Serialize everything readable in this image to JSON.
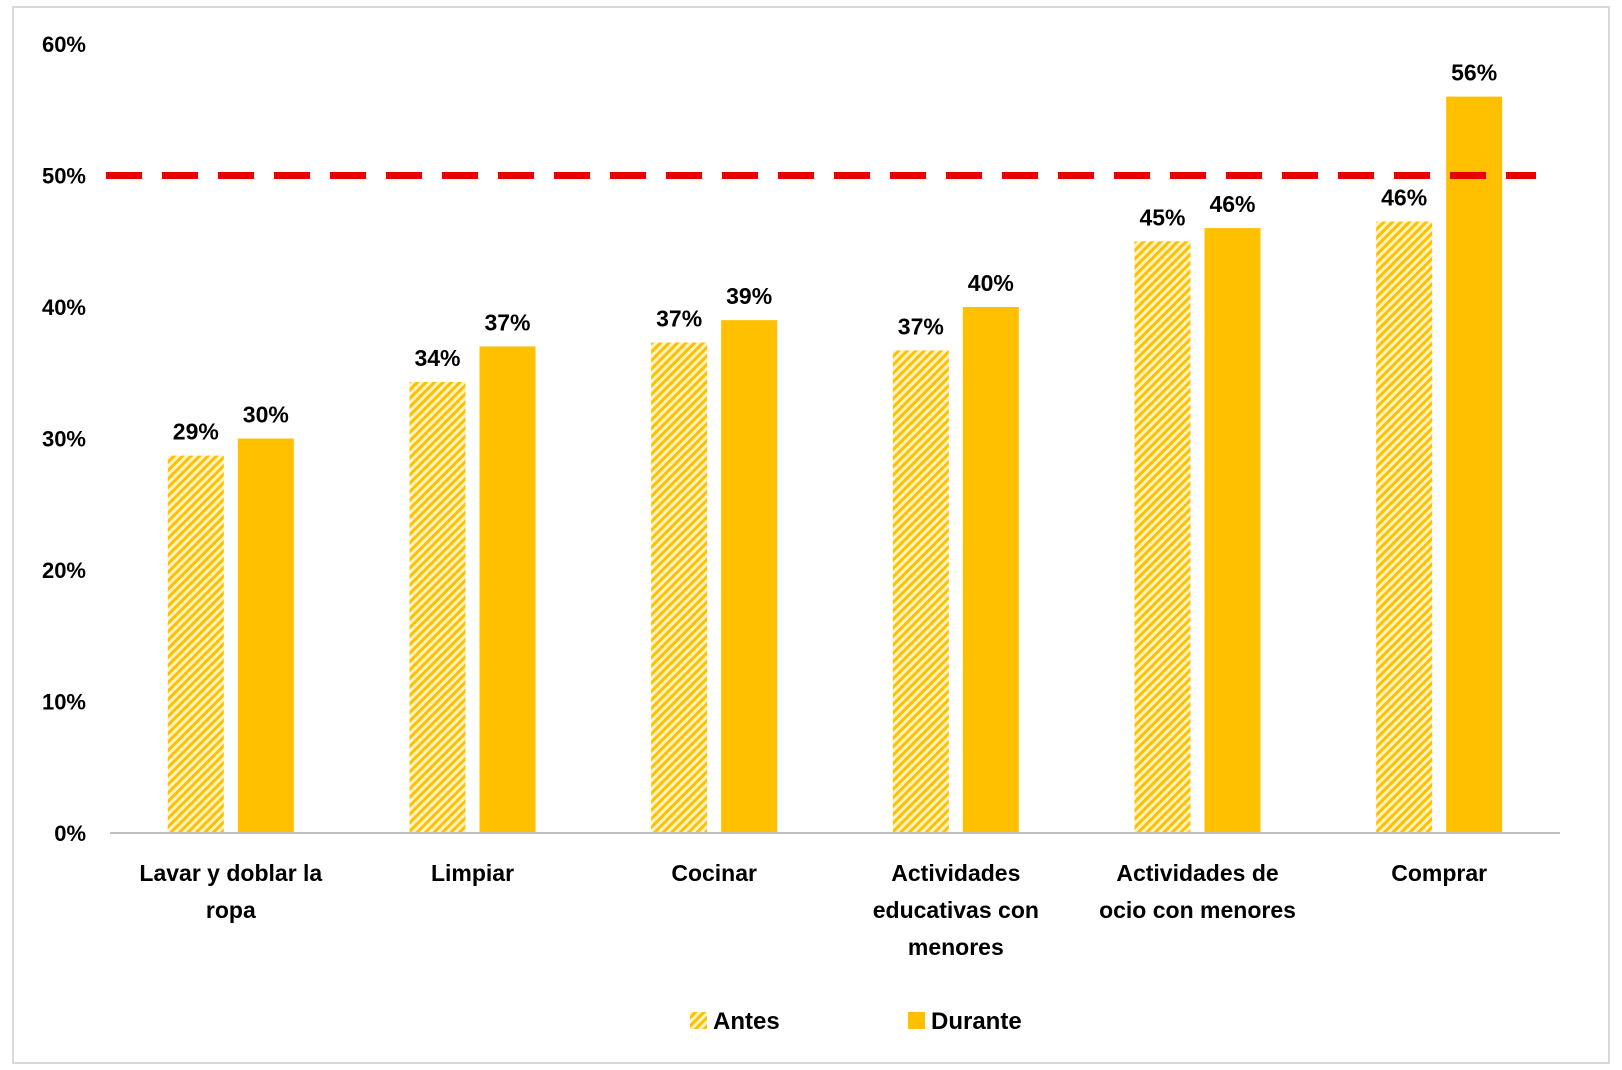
{
  "chart_data": {
    "type": "bar",
    "title": "",
    "xlabel": "",
    "ylabel": "",
    "ylim": [
      0,
      0.6
    ],
    "yticks": [
      "0%",
      "10%",
      "20%",
      "30%",
      "40%",
      "50%",
      "60%"
    ],
    "categories": [
      [
        "Lavar y doblar la",
        "ropa"
      ],
      [
        "Limpiar"
      ],
      [
        "Cocinar"
      ],
      [
        "Actividades",
        "educativas con",
        "menores"
      ],
      [
        "Actividades de",
        "ocio con menores"
      ],
      [
        "Comprar"
      ]
    ],
    "series": [
      {
        "name": "Antes",
        "pattern": "hatched",
        "color": "#ffc000",
        "values": [
          0.287,
          0.343,
          0.373,
          0.367,
          0.45,
          0.465
        ],
        "labels": [
          "29%",
          "34%",
          "37%",
          "37%",
          "45%",
          "46%"
        ]
      },
      {
        "name": "Durante",
        "pattern": "solid",
        "color": "#ffc000",
        "values": [
          0.3,
          0.37,
          0.39,
          0.4,
          0.46,
          0.56
        ],
        "labels": [
          "30%",
          "37%",
          "39%",
          "40%",
          "46%",
          "56%"
        ]
      }
    ],
    "reference_line": {
      "value": 0.5,
      "color": "#e60000",
      "style": "dashed"
    },
    "grid": false,
    "legend_position": "bottom"
  }
}
